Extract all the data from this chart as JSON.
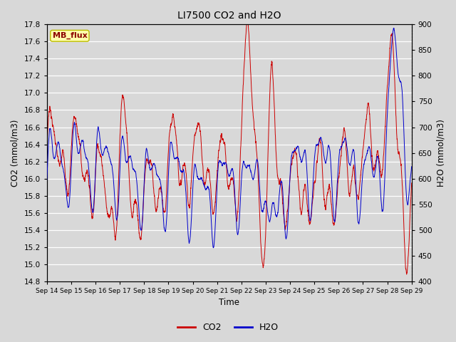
{
  "title": "LI7500 CO2 and H2O",
  "xlabel": "Time",
  "ylabel_left": "CO2 (mmol/m3)",
  "ylabel_right": "H2O (mmol/m3)",
  "ylim_left": [
    14.8,
    17.8
  ],
  "ylim_right": [
    400,
    900
  ],
  "yticks_left": [
    14.8,
    15.0,
    15.2,
    15.4,
    15.6,
    15.8,
    16.0,
    16.2,
    16.4,
    16.6,
    16.8,
    17.0,
    17.2,
    17.4,
    17.6,
    17.8
  ],
  "yticks_right": [
    400,
    450,
    500,
    550,
    600,
    650,
    700,
    750,
    800,
    850,
    900
  ],
  "xtick_labels": [
    "Sep 14",
    "Sep 15",
    "Sep 16",
    "Sep 17",
    "Sep 18",
    "Sep 19",
    "Sep 20",
    "Sep 21",
    "Sep 22",
    "Sep 23",
    "Sep 24",
    "Sep 25",
    "Sep 26",
    "Sep 27",
    "Sep 28",
    "Sep 29"
  ],
  "co2_color": "#cc0000",
  "h2o_color": "#0000cc",
  "background_color": "#d8d8d8",
  "plot_bg_color": "#d8d8d8",
  "grid_color": "#ffffff",
  "mb_flux_text": "MB_flux",
  "mb_flux_bg": "#ffffaa",
  "mb_flux_border": "#bbbb00",
  "mb_flux_text_color": "#8b0000",
  "legend_co2": "CO2",
  "legend_h2o": "H2O",
  "n_points": 3000,
  "seed": 7
}
